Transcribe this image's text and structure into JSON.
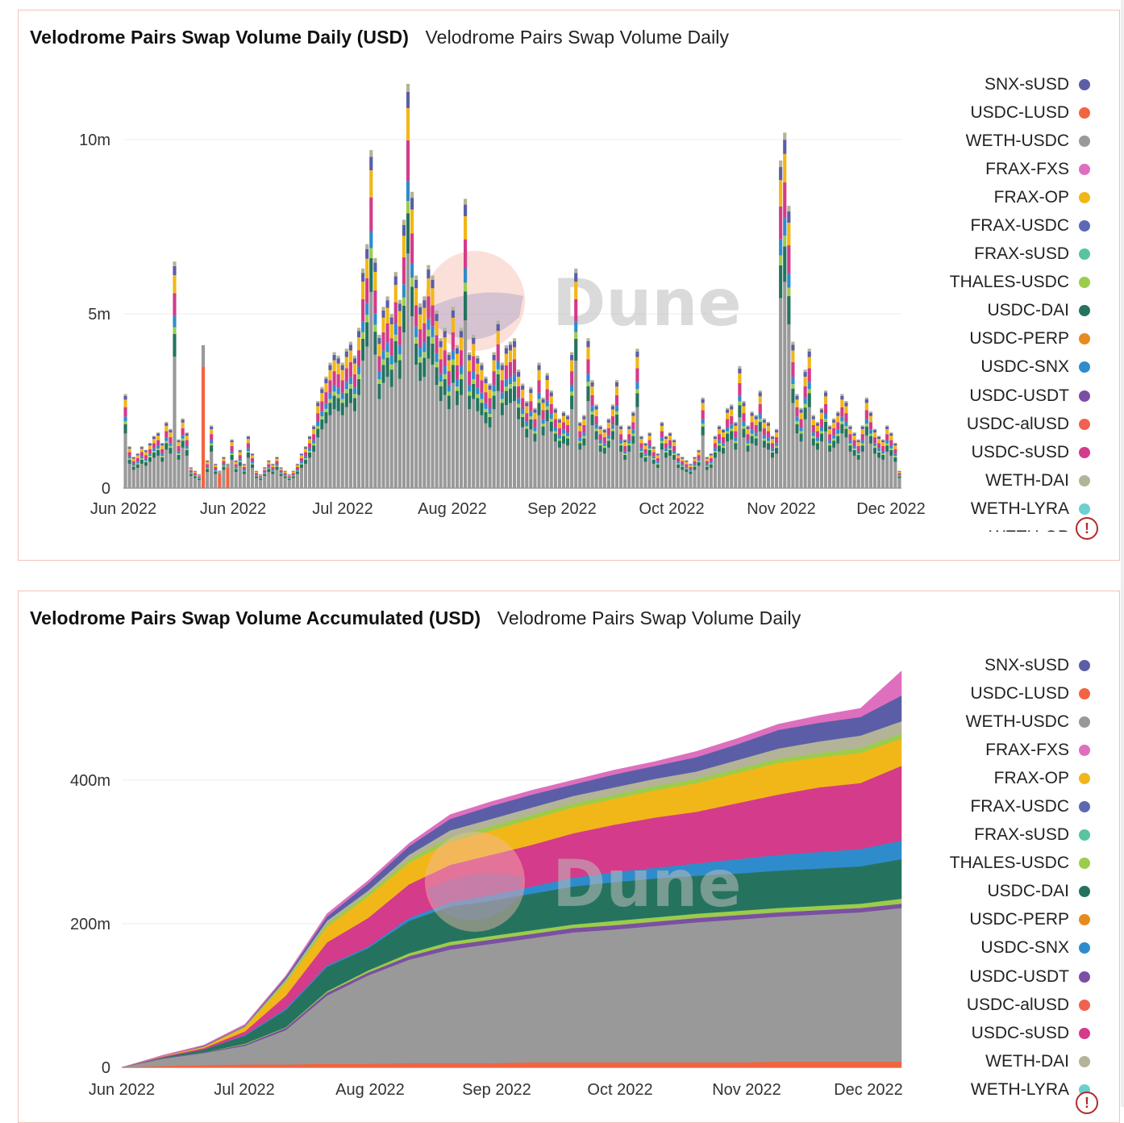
{
  "colors": {
    "SNX-sUSD": "#5b5ea6",
    "USDC-LUSD": "#f26440",
    "WETH-USDC": "#999999",
    "FRAX-FXS": "#de6fbf",
    "FRAX-OP": "#f1b718",
    "FRAX-USDC": "#5d68b5",
    "FRAX-sUSD": "#57c4a2",
    "THALES-USDC": "#9ccc4b",
    "USDC-DAI": "#25735f",
    "USDC-PERP": "#e58b1f",
    "USDC-SNX": "#2f8ccc",
    "USDC-USDT": "#7b4fa3",
    "USDC-alUSD": "#ef6251",
    "USDC-sUSD": "#d43b8a",
    "WETH-DAI": "#b3b398",
    "WETH-LYRA": "#6ccfd0",
    "GRID": "#ececec",
    "BAR_MAIN": "#8f8f8f",
    "BAR_CAP": "#f4d16f"
  },
  "legend": [
    "SNX-sUSD",
    "USDC-LUSD",
    "WETH-USDC",
    "FRAX-FXS",
    "FRAX-OP",
    "FRAX-USDC",
    "FRAX-sUSD",
    "THALES-USDC",
    "USDC-DAI",
    "USDC-PERP",
    "USDC-SNX",
    "USDC-USDT",
    "USDC-alUSD",
    "USDC-sUSD",
    "WETH-DAI",
    "WETH-LYRA",
    "WETH-OP"
  ],
  "daily": {
    "title": "Velodrome Pairs Swap Volume Daily (USD)",
    "subtitle": "Velodrome Pairs Swap Volume Daily",
    "watermark": "Dune",
    "chart_data": {
      "type": "bar",
      "stacked": true,
      "title": "Velodrome Pairs Swap Volume Daily (USD)",
      "subtitle": "Velodrome Pairs Swap Volume Daily",
      "xlabel": "",
      "ylabel": "",
      "ylim": [
        0,
        12000000
      ],
      "yticks": [
        {
          "value": 0,
          "label": "0"
        },
        {
          "value": 5000000,
          "label": "5m"
        },
        {
          "value": 10000000,
          "label": "10m"
        }
      ],
      "xticks": [
        "Jun 2022",
        "Jun 2022",
        "Jul 2022",
        "Aug 2022",
        "Sep 2022",
        "Oct 2022",
        "Nov 2022",
        "Dec 2022"
      ],
      "x_start": "2022-06-01",
      "x_end": "2022-12-06",
      "legend_position": "right",
      "series_names": [
        "SNX-sUSD",
        "USDC-LUSD",
        "WETH-USDC",
        "FRAX-FXS",
        "FRAX-OP",
        "FRAX-USDC",
        "FRAX-sUSD",
        "THALES-USDC",
        "USDC-DAI",
        "USDC-PERP",
        "USDC-SNX",
        "USDC-USDT",
        "USDC-alUSD",
        "USDC-sUSD",
        "WETH-DAI",
        "WETH-LYRA",
        "WETH-OP"
      ],
      "daily_totals": [
        2.7,
        1.2,
        0.9,
        1.0,
        1.2,
        1.1,
        1.3,
        1.5,
        1.6,
        1.3,
        1.9,
        1.7,
        6.5,
        1.4,
        2.0,
        1.6,
        0.6,
        0.5,
        0.4,
        4.1,
        0.8,
        1.8,
        0.7,
        0.5,
        0.9,
        0.7,
        1.4,
        0.8,
        1.1,
        0.7,
        1.5,
        1.0,
        0.5,
        0.4,
        0.6,
        0.8,
        0.7,
        0.9,
        0.6,
        0.5,
        0.4,
        0.5,
        0.7,
        1.0,
        1.2,
        1.5,
        1.8,
        2.5,
        2.9,
        3.2,
        3.6,
        3.9,
        3.8,
        3.6,
        4.0,
        4.2,
        3.8,
        4.6,
        6.3,
        7.0,
        9.7,
        6.6,
        4.4,
        5.2,
        5.5,
        5.0,
        6.2,
        5.4,
        7.7,
        11.6,
        8.5,
        6.1,
        5.3,
        5.5,
        6.4,
        6.1,
        5.1,
        4.3,
        4.6,
        3.9,
        5.2,
        4.1,
        4.6,
        8.3,
        3.9,
        4.4,
        3.8,
        3.6,
        3.2,
        3.0,
        3.9,
        4.8,
        3.6,
        4.1,
        4.2,
        4.3,
        3.4,
        3.0,
        2.5,
        2.9,
        2.3,
        3.6,
        2.6,
        3.3,
        2.8,
        2.3,
        2.0,
        2.2,
        2.1,
        3.9,
        6.3,
        1.9,
        2.1,
        4.3,
        3.1,
        2.4,
        1.8,
        1.7,
        2.0,
        2.4,
        3.1,
        1.8,
        1.4,
        1.8,
        2.2,
        4.0,
        1.5,
        1.3,
        1.6,
        1.2,
        1.0,
        1.9,
        1.5,
        1.6,
        1.4,
        1.0,
        0.9,
        0.8,
        0.7,
        0.9,
        1.1,
        2.6,
        0.9,
        1.0,
        1.5,
        1.8,
        1.7,
        2.3,
        2.4,
        1.9,
        3.5,
        2.5,
        1.8,
        2.2,
        2.1,
        2.8,
        2.0,
        1.9,
        1.5,
        1.7,
        9.4,
        10.2,
        8.1,
        4.2,
        2.7,
        2.3,
        3.4,
        4.0,
        2.1,
        1.9,
        2.3,
        2.8,
        1.8,
        2.0,
        2.2,
        2.7,
        2.5,
        1.8,
        1.6,
        1.4,
        1.8,
        2.6,
        2.2,
        1.7,
        1.5,
        1.4,
        1.8,
        1.6,
        1.3,
        0.5
      ]
    }
  },
  "accumulated": {
    "title": "Velodrome Pairs Swap Volume Accumulated (USD)",
    "subtitle": "Velodrome Pairs Swap Volume Daily",
    "watermark": "Dune",
    "chart_data": {
      "type": "area",
      "stacked": true,
      "title": "Velodrome Pairs Swap Volume Accumulated (USD)",
      "subtitle": "Velodrome Pairs Swap Volume Daily",
      "xlabel": "",
      "ylabel": "",
      "ylim": [
        0,
        560000000
      ],
      "yticks": [
        {
          "value": 0,
          "label": "0"
        },
        {
          "value": 200000000,
          "label": "200m"
        },
        {
          "value": 400000000,
          "label": "400m"
        }
      ],
      "xticks": [
        "Jun 2022",
        "Jul 2022",
        "Aug 2022",
        "Sep 2022",
        "Oct 2022",
        "Nov 2022",
        "Dec 2022"
      ],
      "legend_position": "right",
      "series": [
        {
          "name": "USDC-LUSD",
          "top": [
            0,
            2,
            3,
            4,
            4,
            5,
            5,
            6,
            6,
            6,
            7,
            7,
            7,
            7,
            7,
            7,
            8,
            8,
            8,
            8
          ]
        },
        {
          "name": "WETH-USDC",
          "top": [
            0,
            12,
            20,
            30,
            52,
            100,
            128,
            150,
            164,
            172,
            180,
            188,
            192,
            197,
            202,
            206,
            210,
            213,
            216,
            222
          ]
        },
        {
          "name": "USDC-USDT",
          "top": [
            0,
            13,
            21,
            32,
            55,
            104,
            132,
            155,
            170,
            178,
            186,
            194,
            198,
            203,
            208,
            212,
            216,
            219,
            222,
            228
          ]
        },
        {
          "name": "THALES-USDC",
          "top": [
            0,
            13,
            21,
            33,
            56,
            106,
            135,
            159,
            175,
            183,
            191,
            199,
            204,
            209,
            214,
            218,
            222,
            225,
            228,
            235
          ]
        },
        {
          "name": "USDC-DAI",
          "top": [
            0,
            14,
            25,
            44,
            80,
            140,
            166,
            204,
            224,
            232,
            242,
            252,
            258,
            263,
            267,
            270,
            274,
            277,
            280,
            290
          ]
        },
        {
          "name": "USDC-SNX",
          "top": [
            0,
            14,
            25,
            45,
            82,
            142,
            168,
            208,
            230,
            240,
            252,
            264,
            272,
            278,
            284,
            290,
            296,
            300,
            304,
            316
          ]
        },
        {
          "name": "USDC-sUSD",
          "top": [
            0,
            15,
            27,
            50,
            100,
            174,
            208,
            255,
            282,
            296,
            310,
            326,
            338,
            348,
            356,
            368,
            380,
            390,
            396,
            420
          ]
        },
        {
          "name": "FRAX-OP",
          "top": [
            0,
            16,
            29,
            56,
            118,
            196,
            238,
            285,
            314,
            330,
            346,
            362,
            374,
            386,
            396,
            410,
            424,
            432,
            438,
            458
          ]
        },
        {
          "name": "THALES-USDC",
          "top": [
            0,
            16,
            29,
            57,
            121,
            200,
            242,
            290,
            320,
            336,
            352,
            368,
            380,
            392,
            402,
            416,
            430,
            438,
            445,
            465
          ]
        },
        {
          "name": "WETH-DAI",
          "top": [
            0,
            16,
            29,
            57,
            123,
            204,
            246,
            296,
            330,
            346,
            362,
            378,
            390,
            402,
            412,
            428,
            444,
            454,
            462,
            482
          ]
        },
        {
          "name": "SNX-sUSD",
          "top": [
            0,
            16,
            30,
            58,
            126,
            210,
            256,
            308,
            346,
            364,
            380,
            394,
            408,
            420,
            432,
            450,
            470,
            480,
            488,
            518
          ]
        },
        {
          "name": "FRAX-FXS",
          "top": [
            0,
            17,
            31,
            60,
            128,
            214,
            260,
            312,
            352,
            370,
            386,
            400,
            414,
            426,
            440,
            458,
            478,
            490,
            500,
            552
          ]
        }
      ]
    }
  }
}
